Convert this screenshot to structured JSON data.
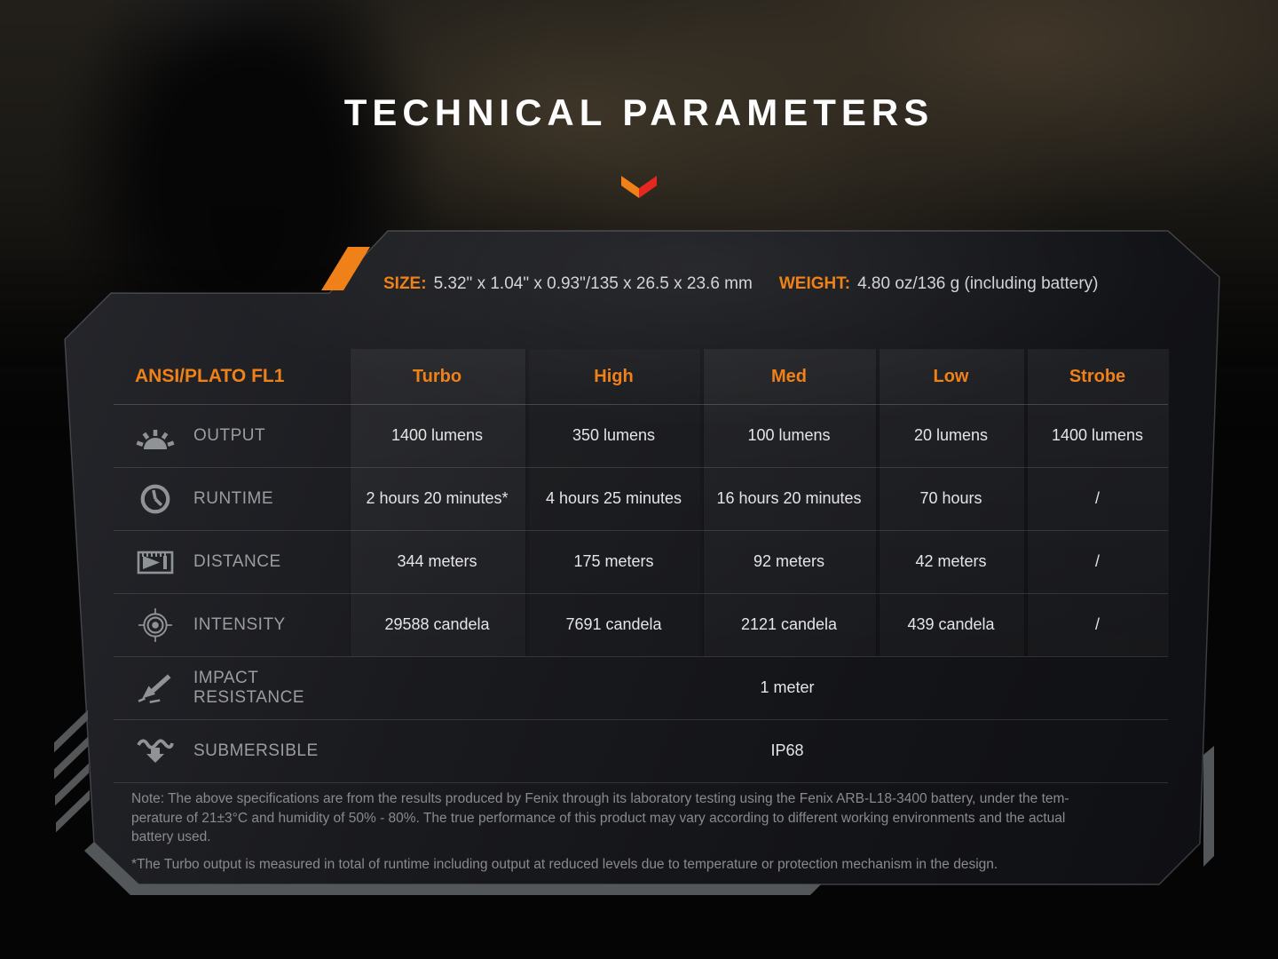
{
  "page": {
    "title": "TECHNICAL PARAMETERS"
  },
  "colors": {
    "accent_orange": "#f08119",
    "accent_red": "#e5281f",
    "icon_gray": "#909396"
  },
  "specs_bar": {
    "size_label": "SIZE:",
    "size_value": "5.32\" x 1.04\" x 0.93\"/135 x 26.5 x 23.6 mm",
    "weight_label": "WEIGHT:",
    "weight_value": "4.80 oz/136 g (including battery)"
  },
  "table": {
    "corner_label": "ANSI/PLATO FL1",
    "mode_headers": [
      "Turbo",
      "High",
      "Med",
      "Low",
      "Strobe"
    ],
    "rows": [
      {
        "icon": "sun-output-icon",
        "label": "OUTPUT",
        "values": [
          "1400 lumens",
          "350 lumens",
          "100 lumens",
          "20 lumens",
          "1400 lumens"
        ]
      },
      {
        "icon": "clock-runtime-icon",
        "label": "RUNTIME",
        "values": [
          "2 hours 20 minutes*",
          "4 hours 25 minutes",
          "16 hours 20 minutes",
          "70 hours",
          "/"
        ]
      },
      {
        "icon": "beam-distance-icon",
        "label": "DISTANCE",
        "values": [
          "344 meters",
          "175 meters",
          "92 meters",
          "42 meters",
          "/"
        ]
      },
      {
        "icon": "target-intensity-icon",
        "label": "INTENSITY",
        "values": [
          "29588 candela",
          "7691 candela",
          "2121 candela",
          "439 candela",
          "/"
        ]
      }
    ],
    "merged_rows": [
      {
        "icon": "impact-resistance-icon",
        "label": "IMPACT RESISTANCE",
        "value": "1 meter"
      },
      {
        "icon": "submersible-icon",
        "label": "SUBMERSIBLE",
        "value": "IP68"
      }
    ]
  },
  "note": {
    "lines": [
      "Note: The above specifications are from the results produced by Fenix through its laboratory testing using the Fenix ARB-L18-3400 battery, under the tem-",
      "perature of 21±3°C and humidity of 50% - 80%. The true performance of this product may vary according to different working environments and the actual",
      "battery used."
    ],
    "footnote": "*The Turbo output is measured in total of runtime including output at reduced levels due to temperature or protection mechanism in the design."
  }
}
